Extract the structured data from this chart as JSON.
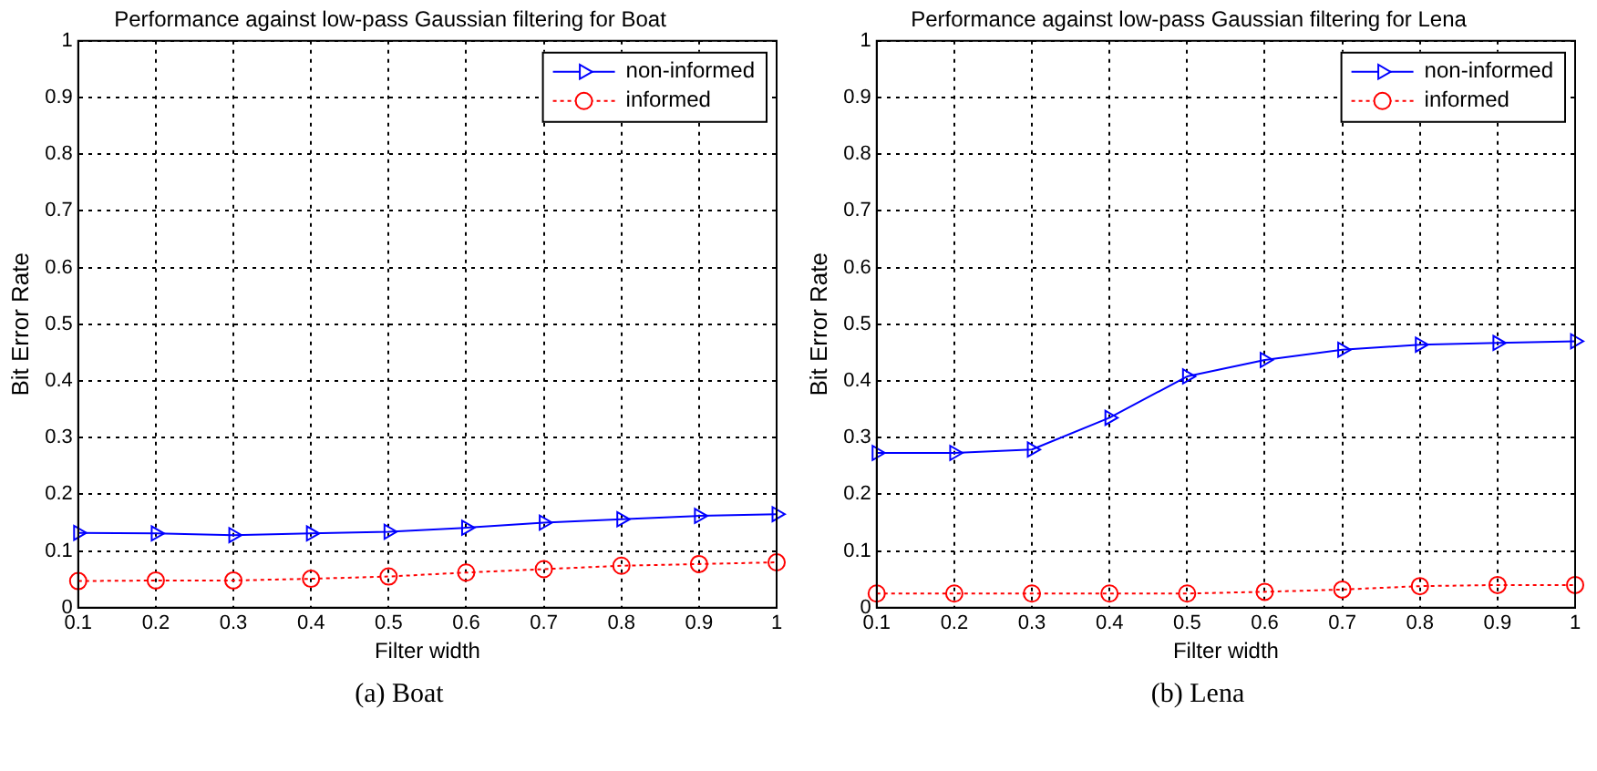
{
  "chart_data": [
    {
      "type": "line",
      "title": "Performance against low-pass Gaussian filtering for Boat",
      "xlabel": "Filter width",
      "ylabel": "Bit Error Rate",
      "x": [
        0.1,
        0.2,
        0.3,
        0.4,
        0.5,
        0.6,
        0.7,
        0.8,
        0.9,
        1
      ],
      "xlim": [
        0.1,
        1
      ],
      "xticks": [
        0.1,
        0.2,
        0.3,
        0.4,
        0.5,
        0.6,
        0.7,
        0.8,
        0.9,
        1
      ],
      "ylim": [
        0,
        1
      ],
      "yticks": [
        0,
        0.1,
        0.2,
        0.3,
        0.4,
        0.5,
        0.6,
        0.7,
        0.8,
        0.9,
        1
      ],
      "grid": true,
      "legend": "top right",
      "annotations": [
        "(a) Boat"
      ],
      "series": [
        {
          "name": "non-informed",
          "color": "#0000ff",
          "marker": "triangle",
          "line_style": "solid",
          "values": [
            0.132,
            0.131,
            0.128,
            0.131,
            0.134,
            0.141,
            0.15,
            0.156,
            0.162,
            0.165
          ]
        },
        {
          "name": "informed",
          "color": "#ff0000",
          "marker": "circle",
          "line_style": "dotted",
          "values": [
            0.047,
            0.048,
            0.048,
            0.051,
            0.055,
            0.062,
            0.068,
            0.074,
            0.077,
            0.08
          ]
        }
      ]
    },
    {
      "type": "line",
      "title": "Performance against low-pass Gaussian filtering for Lena",
      "xlabel": "Filter width",
      "ylabel": "Bit Error Rate",
      "x": [
        0.1,
        0.2,
        0.3,
        0.4,
        0.5,
        0.6,
        0.7,
        0.8,
        0.9,
        1
      ],
      "xlim": [
        0.1,
        1
      ],
      "xticks": [
        0.1,
        0.2,
        0.3,
        0.4,
        0.5,
        0.6,
        0.7,
        0.8,
        0.9,
        1
      ],
      "ylim": [
        0,
        1
      ],
      "yticks": [
        0,
        0.1,
        0.2,
        0.3,
        0.4,
        0.5,
        0.6,
        0.7,
        0.8,
        0.9,
        1
      ],
      "grid": true,
      "legend": "top right",
      "annotations": [
        "(b) Lena"
      ],
      "series": [
        {
          "name": "non-informed",
          "color": "#0000ff",
          "marker": "triangle",
          "line_style": "solid",
          "values": [
            0.273,
            0.273,
            0.279,
            0.335,
            0.408,
            0.437,
            0.455,
            0.464,
            0.467,
            0.47
          ]
        },
        {
          "name": "informed",
          "color": "#ff0000",
          "marker": "circle",
          "line_style": "dotted",
          "values": [
            0.025,
            0.025,
            0.025,
            0.025,
            0.025,
            0.028,
            0.032,
            0.038,
            0.04,
            0.04
          ]
        }
      ]
    }
  ]
}
